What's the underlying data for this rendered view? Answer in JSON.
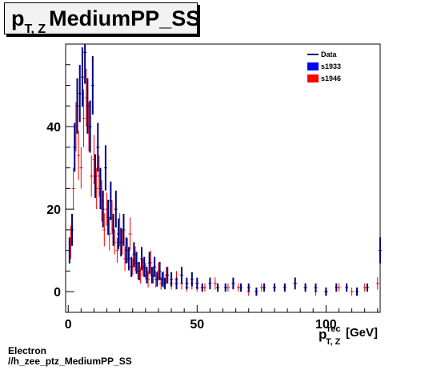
{
  "title": {
    "main_prefix": "p",
    "subscript": "T, Z",
    "main_suffix": "MediumPP_SS"
  },
  "x_axis": {
    "label_main": "p",
    "label_sup": "rec",
    "label_sub": "T, Z",
    "label_unit": "[GeV]",
    "ticks": [
      "0",
      "50",
      "100"
    ]
  },
  "y_axis": {
    "ticks": [
      "0",
      "20",
      "40"
    ]
  },
  "legend": [
    {
      "label": "Data",
      "color": "#000080",
      "style": "line"
    },
    {
      "label": "s1933",
      "color": "#0000ff",
      "style": "box"
    },
    {
      "label": "s1946",
      "color": "#ff0000",
      "style": "box"
    }
  ],
  "footer": {
    "line1": "Electron",
    "line2": "//h_zee_ptz_MediumPP_SS"
  },
  "chart_data": {
    "type": "scatter",
    "xlim": [
      -1,
      121
    ],
    "ylim": [
      -5,
      60
    ],
    "grid": false,
    "legend_position": "top-right",
    "series": [
      {
        "name": "s1946",
        "color": "#ff0000",
        "x": [
          1,
          2,
          3,
          4,
          5,
          6,
          7,
          8,
          9,
          10,
          11,
          12,
          13,
          14,
          15,
          16,
          17,
          18,
          19,
          20,
          21,
          22,
          23,
          24,
          25,
          26,
          27,
          28,
          29,
          30,
          31,
          32,
          33,
          34,
          35,
          36,
          37,
          38,
          40,
          42,
          44,
          46,
          48,
          50,
          53,
          57,
          62,
          66,
          70,
          75,
          80,
          88,
          92,
          96,
          100,
          105,
          110,
          115,
          120
        ],
        "y": [
          12,
          25,
          40,
          33,
          30,
          42,
          47,
          40,
          28,
          32,
          25,
          28,
          22,
          15,
          20,
          14,
          18,
          12,
          10,
          15,
          12,
          8,
          10,
          14,
          6,
          8,
          5,
          4,
          6,
          5,
          3,
          7,
          4,
          3,
          5,
          2,
          3,
          4,
          2,
          3,
          2,
          1,
          2,
          1,
          1,
          2,
          1,
          1,
          0,
          1,
          1,
          2,
          1,
          0,
          0,
          1,
          0,
          1,
          2
        ],
        "yerr": [
          4,
          5,
          6,
          6,
          5,
          7,
          7,
          6,
          5,
          6,
          5,
          5,
          5,
          4,
          4,
          4,
          4,
          3,
          3,
          4,
          3,
          3,
          3,
          4,
          2,
          3,
          2,
          2,
          2,
          2,
          2,
          3,
          2,
          2,
          2,
          1.5,
          2,
          2,
          1.5,
          2,
          1.5,
          1,
          1.5,
          1,
          1,
          1.5,
          1,
          1,
          1,
          1,
          1,
          1.5,
          1,
          1,
          1,
          1,
          1,
          1,
          1.5
        ]
      },
      {
        "name": "Data",
        "color": "#000080",
        "x": [
          0.5,
          1.5,
          2.5,
          3.5,
          4.5,
          5.5,
          6.5,
          7.5,
          8.5,
          9.5,
          10.5,
          11.5,
          12.5,
          13.5,
          14.5,
          15.5,
          16.5,
          17.5,
          18.5,
          19.5,
          20.5,
          21.5,
          22.5,
          23.5,
          24.5,
          25.5,
          26.5,
          27.5,
          28.5,
          29.5,
          30.5,
          31.5,
          32.5,
          33.5,
          34.5,
          35.5,
          36.5,
          37.5,
          38.5,
          40,
          42,
          44,
          46,
          48,
          50,
          52,
          55,
          58,
          61,
          64,
          67,
          70,
          73,
          76,
          80,
          84,
          88,
          92,
          96,
          100,
          104,
          108,
          112,
          116,
          121
        ],
        "y": [
          10,
          15,
          35,
          45,
          48,
          52,
          58,
          45,
          40,
          50,
          28,
          35,
          25,
          20,
          30,
          18,
          22,
          15,
          20,
          14,
          12,
          15,
          10,
          8,
          6,
          9,
          7,
          5,
          8,
          6,
          4,
          7,
          4,
          6,
          3,
          5,
          3,
          2,
          4,
          3,
          2,
          4,
          2,
          3,
          2,
          1,
          2,
          1,
          1,
          2,
          1,
          1,
          0,
          1,
          1,
          1,
          2,
          1,
          1,
          0,
          1,
          1,
          0,
          1,
          10
        ]
      }
    ]
  }
}
